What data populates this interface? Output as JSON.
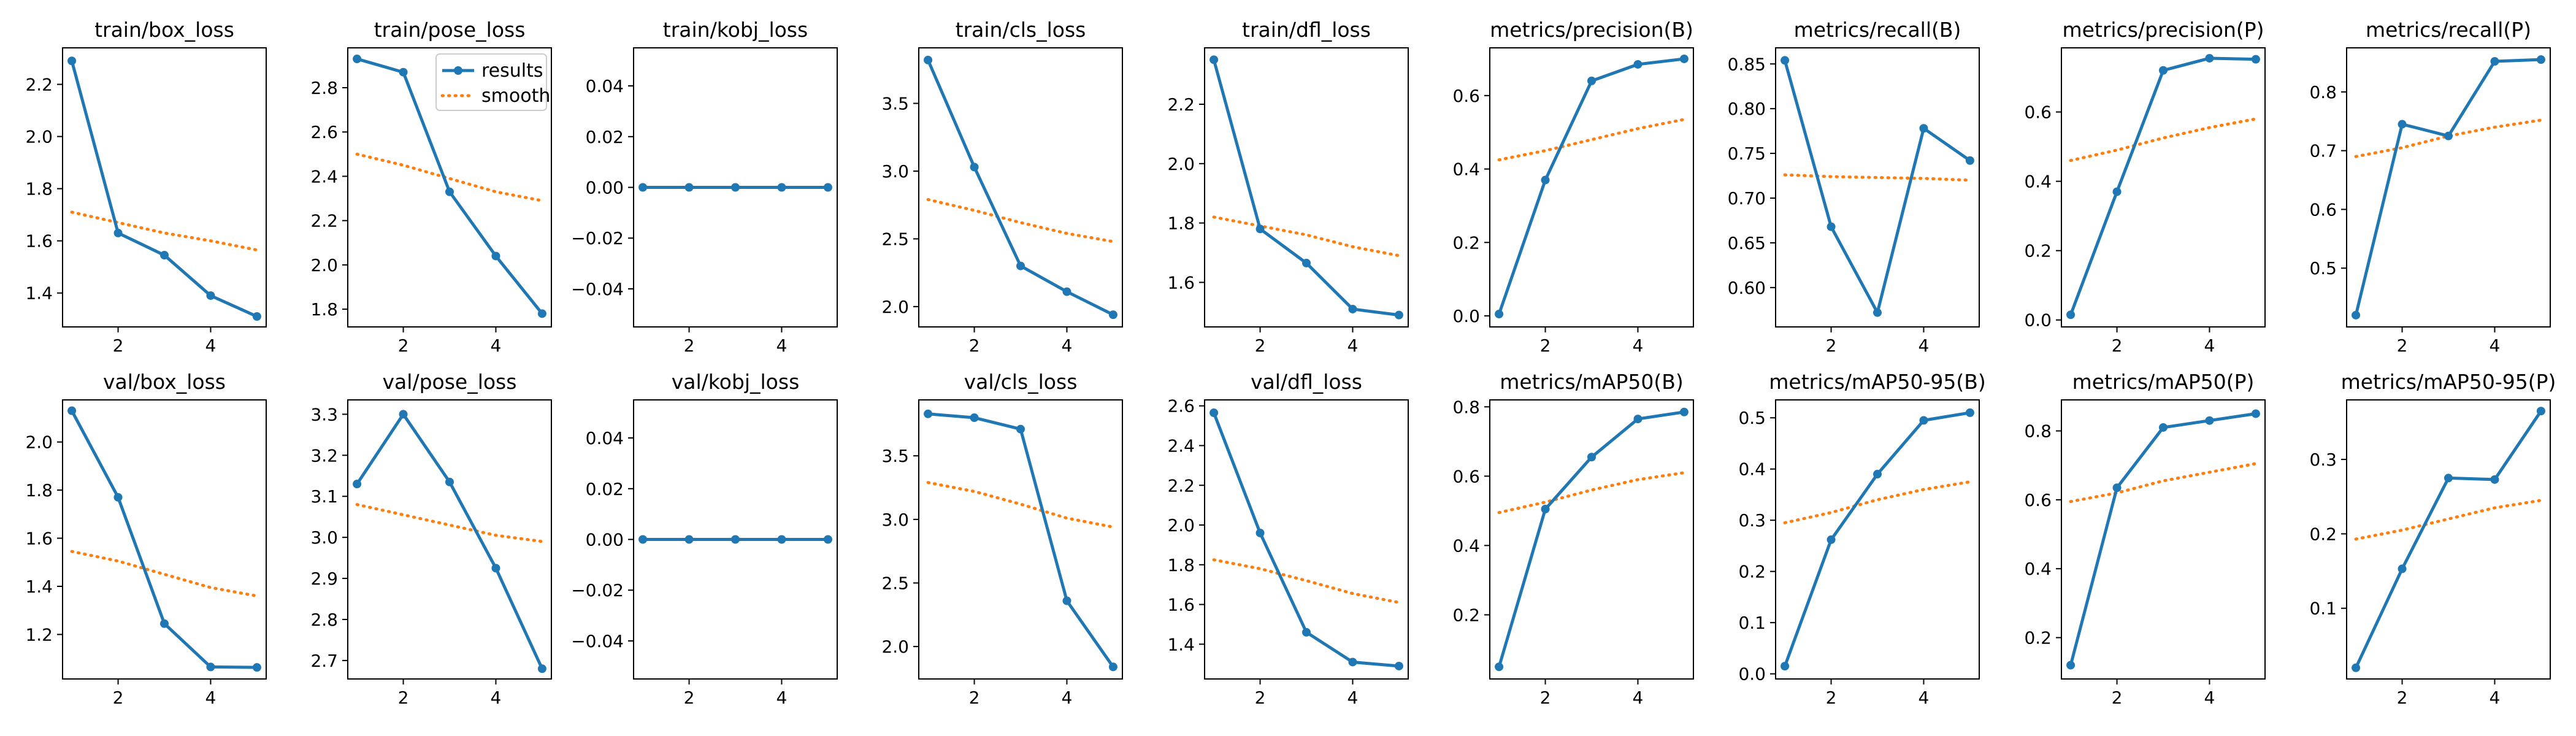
{
  "colors": {
    "results": "#1f77b4",
    "smooth": "#ff7f0e",
    "axes": "#000000",
    "background": "#ffffff"
  },
  "legend": {
    "entries": [
      "results",
      "smooth"
    ],
    "location": "upper right",
    "panel": "train/pose_loss"
  },
  "chart_data": [
    {
      "type": "line",
      "title": "train/box_loss",
      "x": [
        1,
        2,
        3,
        4,
        5
      ],
      "xticks": [
        2,
        4
      ],
      "xlim": [
        0.8,
        5.2
      ],
      "yticks": [
        "1.4",
        "1.6",
        "1.8",
        "2.0",
        "2.2"
      ],
      "ylim": [
        1.27,
        2.34
      ],
      "series": [
        {
          "name": "results",
          "values": [
            2.29,
            1.63,
            1.545,
            1.39,
            1.31
          ]
        },
        {
          "name": "smooth",
          "values": [
            1.71,
            1.67,
            1.63,
            1.6,
            1.565
          ]
        }
      ]
    },
    {
      "type": "line",
      "title": "train/pose_loss",
      "x": [
        1,
        2,
        3,
        4,
        5
      ],
      "xticks": [
        2,
        4
      ],
      "xlim": [
        0.8,
        5.2
      ],
      "yticks": [
        "1.8",
        "2.0",
        "2.2",
        "2.4",
        "2.6",
        "2.8"
      ],
      "ylim": [
        1.72,
        2.98
      ],
      "series": [
        {
          "name": "results",
          "values": [
            2.93,
            2.87,
            2.33,
            2.04,
            1.78
          ]
        },
        {
          "name": "smooth",
          "values": [
            2.5,
            2.45,
            2.39,
            2.33,
            2.29
          ]
        }
      ]
    },
    {
      "type": "line",
      "title": "train/kobj_loss",
      "x": [
        1,
        2,
        3,
        4,
        5
      ],
      "xticks": [
        2,
        4
      ],
      "xlim": [
        0.8,
        5.2
      ],
      "yticks": [
        "−0.04",
        "−0.02",
        "0.00",
        "0.02",
        "0.04"
      ],
      "ylim": [
        -0.055,
        0.055
      ],
      "series": [
        {
          "name": "results",
          "values": [
            0,
            0,
            0,
            0,
            0
          ]
        },
        {
          "name": "smooth",
          "values": [
            0,
            0,
            0,
            0,
            0
          ]
        }
      ]
    },
    {
      "type": "line",
      "title": "train/cls_loss",
      "x": [
        1,
        2,
        3,
        4,
        5
      ],
      "xticks": [
        2,
        4
      ],
      "xlim": [
        0.8,
        5.2
      ],
      "yticks": [
        "2.0",
        "2.5",
        "3.0",
        "3.5"
      ],
      "ylim": [
        1.85,
        3.91
      ],
      "series": [
        {
          "name": "results",
          "values": [
            3.82,
            3.03,
            2.3,
            2.11,
            1.94
          ]
        },
        {
          "name": "smooth",
          "values": [
            2.79,
            2.71,
            2.62,
            2.54,
            2.48
          ]
        }
      ]
    },
    {
      "type": "line",
      "title": "train/dfl_loss",
      "x": [
        1,
        2,
        3,
        4,
        5
      ],
      "xticks": [
        2,
        4
      ],
      "xlim": [
        0.8,
        5.2
      ],
      "yticks": [
        "1.6",
        "1.8",
        "2.0",
        "2.2"
      ],
      "ylim": [
        1.45,
        2.39
      ],
      "series": [
        {
          "name": "results",
          "values": [
            2.35,
            1.78,
            1.665,
            1.51,
            1.49
          ]
        },
        {
          "name": "smooth",
          "values": [
            1.82,
            1.79,
            1.76,
            1.72,
            1.69
          ]
        }
      ]
    },
    {
      "type": "line",
      "title": "metrics/precision(B)",
      "x": [
        1,
        2,
        3,
        4,
        5
      ],
      "xticks": [
        2,
        4
      ],
      "xlim": [
        0.8,
        5.2
      ],
      "yticks": [
        "0.0",
        "0.2",
        "0.4",
        "0.6"
      ],
      "ylim": [
        -0.03,
        0.73
      ],
      "series": [
        {
          "name": "results",
          "values": [
            0.005,
            0.37,
            0.64,
            0.685,
            0.7
          ]
        },
        {
          "name": "smooth",
          "values": [
            0.425,
            0.45,
            0.48,
            0.51,
            0.535
          ]
        }
      ]
    },
    {
      "type": "line",
      "title": "metrics/recall(B)",
      "x": [
        1,
        2,
        3,
        4,
        5
      ],
      "xticks": [
        2,
        4
      ],
      "xlim": [
        0.8,
        5.2
      ],
      "yticks": [
        "0.60",
        "0.65",
        "0.70",
        "0.75",
        "0.80",
        "0.85"
      ],
      "ylim": [
        0.556,
        0.868
      ],
      "series": [
        {
          "name": "results",
          "values": [
            0.854,
            0.668,
            0.572,
            0.778,
            0.742
          ]
        },
        {
          "name": "smooth",
          "values": [
            0.726,
            0.724,
            0.723,
            0.722,
            0.72
          ]
        }
      ]
    },
    {
      "type": "line",
      "title": "metrics/precision(P)",
      "x": [
        1,
        2,
        3,
        4,
        5
      ],
      "xticks": [
        2,
        4
      ],
      "xlim": [
        0.8,
        5.2
      ],
      "yticks": [
        "0.0",
        "0.2",
        "0.4",
        "0.6"
      ],
      "ylim": [
        -0.02,
        0.785
      ],
      "series": [
        {
          "name": "results",
          "values": [
            0.015,
            0.37,
            0.72,
            0.755,
            0.752
          ]
        },
        {
          "name": "smooth",
          "values": [
            0.46,
            0.49,
            0.525,
            0.555,
            0.58
          ]
        }
      ]
    },
    {
      "type": "line",
      "title": "metrics/recall(P)",
      "x": [
        1,
        2,
        3,
        4,
        5
      ],
      "xticks": [
        2,
        4
      ],
      "xlim": [
        0.8,
        5.2
      ],
      "yticks": [
        "0.5",
        "0.6",
        "0.7",
        "0.8"
      ],
      "ylim": [
        0.4,
        0.875
      ],
      "series": [
        {
          "name": "results",
          "values": [
            0.42,
            0.745,
            0.725,
            0.852,
            0.855
          ]
        },
        {
          "name": "smooth",
          "values": [
            0.69,
            0.705,
            0.725,
            0.74,
            0.752
          ]
        }
      ]
    },
    {
      "type": "line",
      "title": "val/box_loss",
      "x": [
        1,
        2,
        3,
        4,
        5
      ],
      "xticks": [
        2,
        4
      ],
      "xlim": [
        0.8,
        5.2
      ],
      "yticks": [
        "1.2",
        "1.4",
        "1.6",
        "1.8",
        "2.0"
      ],
      "ylim": [
        1.015,
        2.175
      ],
      "series": [
        {
          "name": "results",
          "values": [
            2.13,
            1.77,
            1.245,
            1.065,
            1.063
          ]
        },
        {
          "name": "smooth",
          "values": [
            1.545,
            1.505,
            1.45,
            1.395,
            1.36
          ]
        }
      ]
    },
    {
      "type": "line",
      "title": "val/pose_loss",
      "x": [
        1,
        2,
        3,
        4,
        5
      ],
      "xticks": [
        2,
        4
      ],
      "xlim": [
        0.8,
        5.2
      ],
      "yticks": [
        "2.7",
        "2.8",
        "2.9",
        "3.0",
        "3.1",
        "3.2",
        "3.3"
      ],
      "ylim": [
        2.655,
        3.335
      ],
      "series": [
        {
          "name": "results",
          "values": [
            3.13,
            3.3,
            3.135,
            2.925,
            2.68
          ]
        },
        {
          "name": "smooth",
          "values": [
            3.08,
            3.055,
            3.03,
            3.005,
            2.99
          ]
        }
      ]
    },
    {
      "type": "line",
      "title": "val/kobj_loss",
      "x": [
        1,
        2,
        3,
        4,
        5
      ],
      "xticks": [
        2,
        4
      ],
      "xlim": [
        0.8,
        5.2
      ],
      "yticks": [
        "−0.04",
        "−0.02",
        "0.00",
        "0.02",
        "0.04"
      ],
      "ylim": [
        -0.055,
        0.055
      ],
      "series": [
        {
          "name": "results",
          "values": [
            0,
            0,
            0,
            0,
            0
          ]
        },
        {
          "name": "smooth",
          "values": [
            0,
            0,
            0,
            0,
            0
          ]
        }
      ]
    },
    {
      "type": "line",
      "title": "val/cls_loss",
      "x": [
        1,
        2,
        3,
        4,
        5
      ],
      "xticks": [
        2,
        4
      ],
      "xlim": [
        0.8,
        5.2
      ],
      "yticks": [
        "2.0",
        "2.5",
        "3.0",
        "3.5"
      ],
      "ylim": [
        1.745,
        3.94
      ],
      "series": [
        {
          "name": "results",
          "values": [
            3.83,
            3.8,
            3.71,
            2.36,
            1.84
          ]
        },
        {
          "name": "smooth",
          "values": [
            3.29,
            3.22,
            3.12,
            3.01,
            2.94
          ]
        }
      ]
    },
    {
      "type": "line",
      "title": "val/dfl_loss",
      "x": [
        1,
        2,
        3,
        4,
        5
      ],
      "xticks": [
        2,
        4
      ],
      "xlim": [
        0.8,
        5.2
      ],
      "yticks": [
        "1.4",
        "1.6",
        "1.8",
        "2.0",
        "2.2",
        "2.4",
        "2.6"
      ],
      "ylim": [
        1.225,
        2.63
      ],
      "series": [
        {
          "name": "results",
          "values": [
            2.565,
            1.96,
            1.46,
            1.31,
            1.29
          ]
        },
        {
          "name": "smooth",
          "values": [
            1.825,
            1.78,
            1.72,
            1.655,
            1.61
          ]
        }
      ]
    },
    {
      "type": "line",
      "title": "metrics/mAP50(B)",
      "x": [
        1,
        2,
        3,
        4,
        5
      ],
      "xticks": [
        2,
        4
      ],
      "xlim": [
        0.8,
        5.2
      ],
      "yticks": [
        "0.2",
        "0.4",
        "0.6",
        "0.8"
      ],
      "ylim": [
        0.015,
        0.82
      ],
      "series": [
        {
          "name": "results",
          "values": [
            0.05,
            0.505,
            0.655,
            0.765,
            0.785
          ]
        },
        {
          "name": "smooth",
          "values": [
            0.495,
            0.525,
            0.56,
            0.59,
            0.61
          ]
        }
      ]
    },
    {
      "type": "line",
      "title": "metrics/mAP50-95(B)",
      "x": [
        1,
        2,
        3,
        4,
        5
      ],
      "xticks": [
        2,
        4
      ],
      "xlim": [
        0.8,
        5.2
      ],
      "yticks": [
        "0.0",
        "0.1",
        "0.2",
        "0.3",
        "0.4",
        "0.5"
      ],
      "ylim": [
        -0.01,
        0.535
      ],
      "series": [
        {
          "name": "results",
          "values": [
            0.015,
            0.262,
            0.39,
            0.495,
            0.51
          ]
        },
        {
          "name": "smooth",
          "values": [
            0.295,
            0.315,
            0.34,
            0.36,
            0.375
          ]
        }
      ]
    },
    {
      "type": "line",
      "title": "metrics/mAP50(P)",
      "x": [
        1,
        2,
        3,
        4,
        5
      ],
      "xticks": [
        2,
        4
      ],
      "xlim": [
        0.8,
        5.2
      ],
      "yticks": [
        "0.2",
        "0.4",
        "0.6",
        "0.8"
      ],
      "ylim": [
        0.08,
        0.89
      ],
      "series": [
        {
          "name": "results",
          "values": [
            0.12,
            0.635,
            0.81,
            0.83,
            0.85
          ]
        },
        {
          "name": "smooth",
          "values": [
            0.595,
            0.62,
            0.655,
            0.68,
            0.705
          ]
        }
      ]
    },
    {
      "type": "line",
      "title": "metrics/mAP50-95(P)",
      "x": [
        1,
        2,
        3,
        4,
        5
      ],
      "xticks": [
        2,
        4
      ],
      "xlim": [
        0.8,
        5.2
      ],
      "yticks": [
        "0.1",
        "0.2",
        "0.3"
      ],
      "ylim": [
        0.005,
        0.38
      ],
      "series": [
        {
          "name": "results",
          "values": [
            0.02,
            0.153,
            0.275,
            0.273,
            0.365
          ]
        },
        {
          "name": "smooth",
          "values": [
            0.193,
            0.205,
            0.22,
            0.235,
            0.245
          ]
        }
      ]
    }
  ]
}
